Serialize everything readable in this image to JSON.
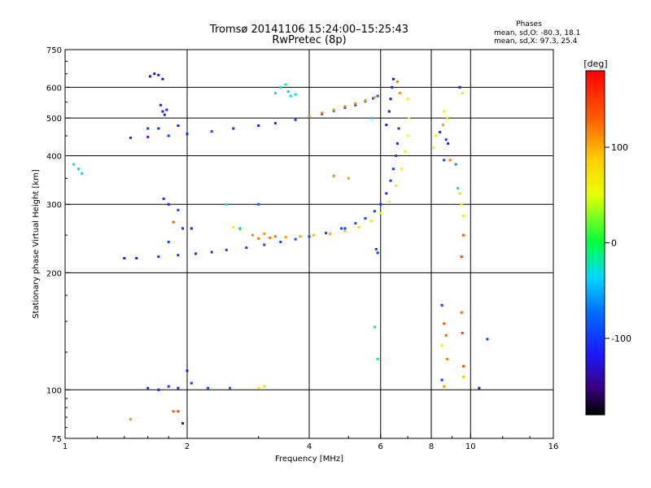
{
  "chart_data": {
    "type": "scatter",
    "title": "Tromsø 20141106 15:24:00–15:25:43",
    "subtitle": "RwPretec (8p)",
    "xlabel": "Frequency [MHz]",
    "ylabel": "Stationary phase Virtual Height [km]",
    "x_scale": "log",
    "y_scale": "log",
    "xlim": [
      1,
      16
    ],
    "ylim": [
      75,
      750
    ],
    "x_ticks": [
      1,
      2,
      4,
      6,
      8,
      10,
      16
    ],
    "y_ticks": [
      75,
      100,
      200,
      300,
      400,
      500,
      600,
      750
    ],
    "grid": true,
    "phases": {
      "heading": "Phases",
      "line_o": "mean, sd,O: -80.3, 18.1",
      "line_x": "mean, sd,X:  97.3, 25.4"
    },
    "colorbar": {
      "label": "[deg]",
      "range": [
        -180,
        180
      ],
      "ticks": [
        {
          "value": 100,
          "label": "100"
        },
        {
          "value": 0,
          "label": "0"
        },
        {
          "value": -100,
          "label": "-100"
        }
      ]
    },
    "series": [
      {
        "points": [
          [
            1.45,
            445
          ],
          [
            1.6,
            447
          ],
          [
            1.8,
            450
          ],
          [
            2.0,
            455
          ],
          [
            2.3,
            462
          ],
          [
            2.6,
            470
          ],
          [
            3.0,
            478
          ],
          [
            3.3,
            485
          ],
          [
            3.7,
            495
          ],
          [
            4.0,
            502
          ],
          [
            4.3,
            512
          ],
          [
            4.6,
            522
          ],
          [
            4.9,
            532
          ],
          [
            5.2,
            540
          ],
          [
            5.5,
            552
          ],
          [
            5.75,
            562
          ],
          [
            5.9,
            570
          ]
        ],
        "phase": [
          -105,
          -108,
          -100,
          -112,
          -98,
          -105,
          -110,
          -102,
          -95,
          -100,
          -108,
          -104,
          -96,
          -100,
          -92,
          -88,
          -85
        ]
      },
      {
        "points": [
          [
            4.0,
            505
          ],
          [
            4.3,
            515
          ],
          [
            4.6,
            525
          ],
          [
            4.9,
            535
          ],
          [
            5.2,
            545
          ],
          [
            5.5,
            555
          ],
          [
            5.8,
            565
          ]
        ],
        "phase": [
          115,
          120,
          110,
          125,
          118,
          105,
          100
        ]
      },
      {
        "points": [
          [
            1.4,
            218
          ],
          [
            1.5,
            218
          ],
          [
            1.7,
            220
          ],
          [
            1.9,
            222
          ],
          [
            2.1,
            224
          ],
          [
            2.3,
            226
          ],
          [
            2.5,
            229
          ],
          [
            2.8,
            232
          ],
          [
            3.1,
            236
          ],
          [
            3.4,
            240
          ],
          [
            3.7,
            244
          ],
          [
            4.0,
            248
          ],
          [
            4.4,
            253
          ],
          [
            4.8,
            260
          ],
          [
            5.2,
            268
          ],
          [
            5.5,
            276
          ],
          [
            5.8,
            288
          ],
          [
            6.0,
            300
          ],
          [
            6.2,
            320
          ],
          [
            6.35,
            345
          ],
          [
            6.45,
            370
          ],
          [
            6.55,
            400
          ],
          [
            6.6,
            430
          ],
          [
            6.65,
            470
          ]
        ],
        "phase": [
          -110,
          -112,
          -105,
          -100,
          -108,
          -102,
          -96,
          -100,
          -98,
          -92,
          -88,
          -95,
          -100,
          -90,
          -85,
          -92,
          -95,
          -100,
          -105,
          -98,
          -100,
          -96,
          -110,
          -102
        ]
      },
      {
        "points": [
          [
            3.0,
            245
          ],
          [
            3.2,
            246
          ],
          [
            3.5,
            247
          ],
          [
            3.8,
            248
          ],
          [
            4.1,
            250
          ],
          [
            4.5,
            252
          ],
          [
            4.9,
            256
          ],
          [
            5.3,
            262
          ],
          [
            5.7,
            272
          ],
          [
            6.0,
            285
          ],
          [
            6.3,
            305
          ],
          [
            6.55,
            335
          ],
          [
            6.75,
            370
          ],
          [
            6.9,
            410
          ],
          [
            7.0,
            450
          ],
          [
            7.05,
            500
          ]
        ],
        "phase": [
          120,
          125,
          110,
          105,
          95,
          100,
          90,
          80,
          70,
          60,
          55,
          60,
          50,
          45,
          55,
          50
        ]
      },
      {
        "points": [
          [
            6.2,
            480
          ],
          [
            6.3,
            520
          ],
          [
            6.35,
            560
          ],
          [
            6.4,
            600
          ],
          [
            6.45,
            630
          ],
          [
            6.6,
            620
          ],
          [
            6.7,
            580
          ],
          [
            7.0,
            560
          ]
        ],
        "phase": [
          -120,
          -130,
          -115,
          -125,
          -140,
          120,
          110,
          60
        ]
      },
      {
        "points": [
          [
            1.62,
            640
          ],
          [
            1.66,
            650
          ],
          [
            1.7,
            645
          ],
          [
            1.74,
            630
          ],
          [
            1.72,
            540
          ],
          [
            1.74,
            520
          ],
          [
            1.76,
            510
          ],
          [
            1.78,
            525
          ],
          [
            1.6,
            470
          ],
          [
            1.7,
            470
          ],
          [
            1.9,
            478
          ]
        ],
        "phase": [
          -125,
          -130,
          -120,
          -135,
          -120,
          -110,
          -125,
          -115,
          -100,
          -105,
          -110
        ]
      },
      {
        "points": [
          [
            3.3,
            580
          ],
          [
            3.4,
            600
          ],
          [
            3.5,
            610
          ],
          [
            3.55,
            585
          ],
          [
            3.6,
            570
          ],
          [
            3.7,
            575
          ]
        ],
        "phase": [
          -20,
          -30,
          -10,
          -40,
          -25,
          -35
        ]
      },
      {
        "points": [
          [
            1.05,
            380
          ],
          [
            1.08,
            370
          ],
          [
            1.1,
            360
          ]
        ],
        "phase": [
          -30,
          -40,
          -20
        ]
      },
      {
        "points": [
          [
            1.75,
            310
          ],
          [
            1.8,
            300
          ],
          [
            1.9,
            290
          ],
          [
            1.85,
            270
          ],
          [
            1.95,
            260
          ],
          [
            2.05,
            260
          ],
          [
            1.8,
            240
          ]
        ],
        "phase": [
          -110,
          -120,
          -100,
          130,
          -105,
          -115,
          -95
        ]
      },
      {
        "points": [
          [
            2.6,
            262
          ],
          [
            2.7,
            258
          ],
          [
            2.9,
            250
          ],
          [
            3.1,
            252
          ],
          [
            3.3,
            248
          ]
        ],
        "phase": [
          70,
          60,
          120,
          110,
          125
        ]
      },
      {
        "points": [
          [
            1.6,
            101
          ],
          [
            1.7,
            100
          ],
          [
            1.8,
            102
          ],
          [
            1.9,
            101
          ],
          [
            2.0,
            112
          ],
          [
            2.05,
            104
          ],
          [
            2.25,
            101
          ],
          [
            2.55,
            101
          ],
          [
            3.0,
            101
          ],
          [
            3.1,
            102
          ]
        ],
        "phase": [
          -105,
          -115,
          -95,
          -110,
          -120,
          -100,
          -90,
          -80,
          70,
          80
        ]
      },
      {
        "points": [
          [
            1.85,
            88
          ],
          [
            1.9,
            88
          ],
          [
            1.45,
            84
          ],
          [
            1.95,
            82
          ]
        ],
        "phase": [
          140,
          150,
          110,
          -130
        ]
      },
      {
        "points": [
          [
            8.1,
            420
          ],
          [
            8.2,
            450
          ],
          [
            8.4,
            460
          ],
          [
            8.55,
            480
          ],
          [
            8.6,
            390
          ],
          [
            8.7,
            440
          ],
          [
            8.6,
            520
          ],
          [
            8.75,
            500
          ],
          [
            8.8,
            430
          ],
          [
            8.9,
            390
          ],
          [
            9.2,
            380
          ],
          [
            9.3,
            330
          ],
          [
            9.4,
            320
          ],
          [
            9.5,
            300
          ],
          [
            9.6,
            280
          ],
          [
            9.6,
            250
          ],
          [
            9.5,
            220
          ],
          [
            9.4,
            600
          ],
          [
            9.55,
            580
          ]
        ],
        "phase": [
          60,
          70,
          -100,
          110,
          -95,
          -105,
          50,
          40,
          -110,
          120,
          -60,
          -30,
          40,
          60,
          50,
          130,
          150,
          -120,
          70
        ]
      },
      {
        "points": [
          [
            8.5,
            165
          ],
          [
            8.6,
            148
          ],
          [
            8.7,
            138
          ],
          [
            8.5,
            130
          ],
          [
            8.75,
            120
          ],
          [
            9.5,
            158
          ],
          [
            9.55,
            140
          ],
          [
            9.6,
            115
          ],
          [
            9.6,
            108
          ],
          [
            8.6,
            102
          ],
          [
            8.5,
            106
          ],
          [
            11.0,
            135
          ],
          [
            10.5,
            101
          ]
        ],
        "phase": [
          -110,
          140,
          130,
          60,
          120,
          130,
          150,
          140,
          90,
          110,
          -100,
          -100,
          -120
        ]
      },
      {
        "points": [
          [
            5.8,
            145
          ],
          [
            5.9,
            120
          ],
          [
            5.85,
            230
          ],
          [
            5.9,
            225
          ],
          [
            5.7,
            500
          ],
          [
            4.6,
            355
          ],
          [
            5.0,
            350
          ],
          [
            3.0,
            300
          ],
          [
            2.5,
            300
          ],
          [
            2.7,
            260
          ],
          [
            4.9,
            260
          ]
        ],
        "phase": [
          -20,
          -10,
          -100,
          -105,
          -40,
          120,
          110,
          -80,
          -30,
          -50,
          -95
        ]
      }
    ]
  }
}
